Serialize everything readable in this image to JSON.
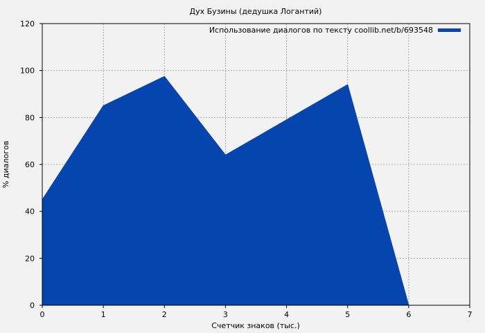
{
  "chart_data": {
    "type": "area",
    "title": "Дух Бузины (дедушка Логантий)",
    "xlabel": "Счетчик знаков (тыс.)",
    "ylabel": "% диалогов",
    "xlim": [
      0,
      7
    ],
    "ylim": [
      0,
      120
    ],
    "x_ticks": [
      "0",
      "1",
      "2",
      "3",
      "4",
      "5",
      "6",
      "7"
    ],
    "y_ticks": [
      "0",
      "20",
      "40",
      "60",
      "80",
      "100",
      "120"
    ],
    "grid": true,
    "legend_position": "top-right",
    "series": [
      {
        "name": "Использование диалогов по тексту coollib.net/b/693548",
        "color": "#0645ad",
        "x": [
          0,
          1,
          2,
          3,
          4,
          5,
          6
        ],
        "y": [
          45,
          85,
          97.5,
          64,
          79,
          94,
          0
        ]
      }
    ]
  },
  "colors": {
    "background": "#f2f2f2",
    "grid": "#999999",
    "series": "#0645ad"
  }
}
